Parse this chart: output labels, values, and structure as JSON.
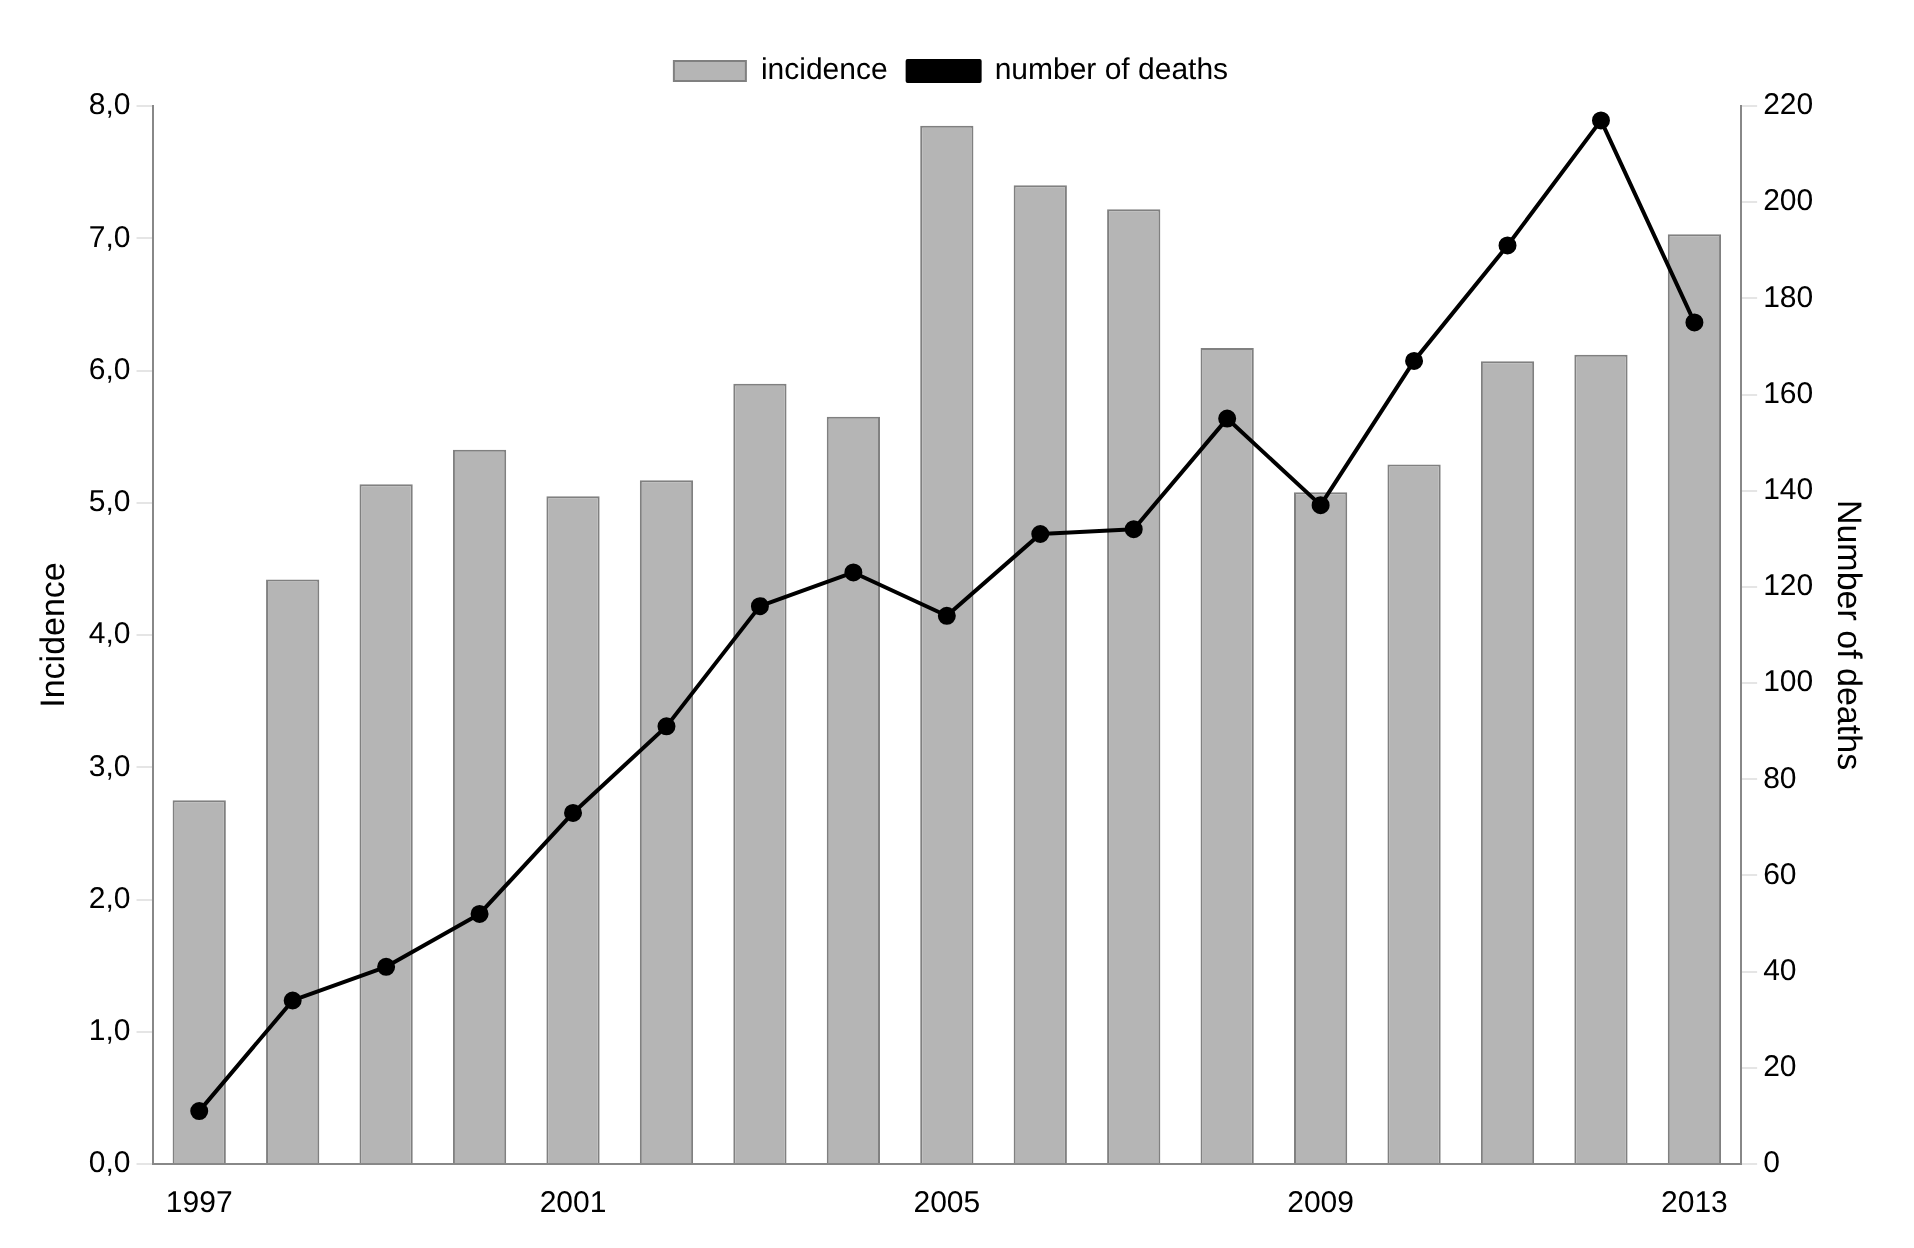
{
  "chart_data": {
    "type": "bar",
    "categories": [
      "1997",
      null,
      null,
      null,
      "2001",
      null,
      null,
      null,
      "2005",
      null,
      null,
      null,
      "2009",
      null,
      null,
      null,
      "2013"
    ],
    "series": [
      {
        "name": "incidence",
        "color": "#b5b5b5",
        "values": [
          2.75,
          4.42,
          5.14,
          5.4,
          5.05,
          5.17,
          5.9,
          5.65,
          7.85,
          7.4,
          7.22,
          6.17,
          5.08,
          5.29,
          6.07,
          6.12,
          7.03
        ]
      },
      {
        "name": "number of deaths",
        "type": "line",
        "axis": "y2",
        "color": "#000000",
        "values": [
          11,
          34,
          41,
          52,
          73,
          91,
          116,
          123,
          114,
          131,
          132,
          155,
          137,
          167,
          191,
          217,
          175
        ]
      }
    ],
    "ylabel": "Incidence",
    "y2label": "Number of deaths",
    "ylim": [
      0,
      8
    ],
    "yticks": [
      {
        "value": 0,
        "label": "0,0"
      },
      {
        "value": 1,
        "label": "1,0"
      },
      {
        "value": 2,
        "label": "2,0"
      },
      {
        "value": 3,
        "label": "3,0"
      },
      {
        "value": 4,
        "label": "4,0"
      },
      {
        "value": 5,
        "label": "5,0"
      },
      {
        "value": 6,
        "label": "6,0"
      },
      {
        "value": 7,
        "label": "7,0"
      },
      {
        "value": 8,
        "label": "8,0"
      }
    ],
    "y2lim": [
      0,
      220
    ],
    "y2ticks": [
      0,
      20,
      40,
      60,
      80,
      100,
      120,
      140,
      160,
      180,
      200,
      220
    ],
    "grid": false,
    "legend": "top",
    "marker": "circle",
    "line_style": "solid"
  }
}
